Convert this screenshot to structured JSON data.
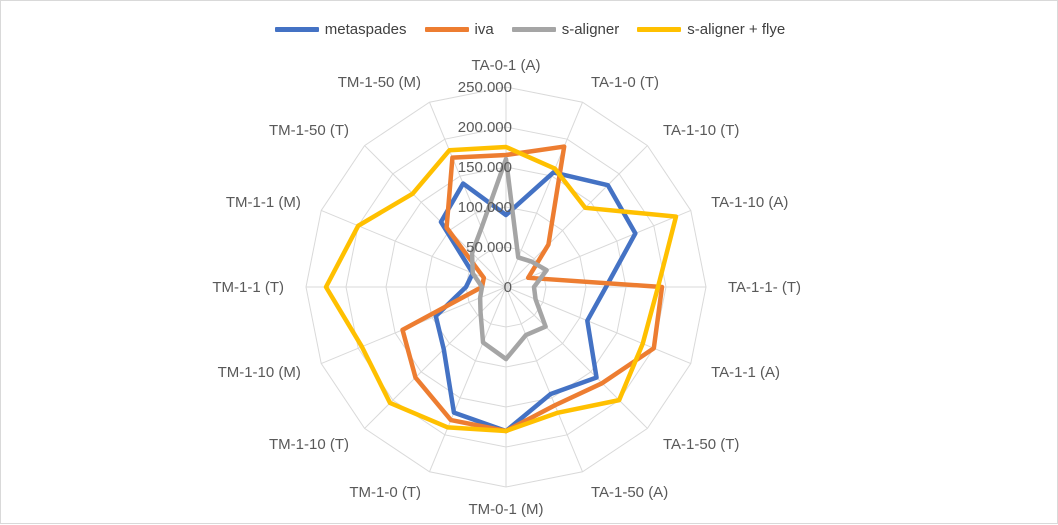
{
  "chart_data": {
    "type": "radar",
    "title": "",
    "categories": [
      "TA-0-1 (A)",
      "TA-1-0 (T)",
      "TA-1-10 (T)",
      "TA-1-10 (A)",
      "TA-1-1- (T)",
      "TA-1-1 (A)",
      "TA-1-50 (T)",
      "TA-1-50 (A)",
      "TM-0-1 (M)",
      "TM-1-0 (T)",
      "TM-1-10 (T)",
      "TM-1-10 (M)",
      "TM-1-1 (T)",
      "TM-1-1 (M)",
      "TM-1-50 (T)",
      "TM-1-50 (M)"
    ],
    "radial_ticks": [
      "0",
      "50.000",
      "100.000",
      "150.000",
      "200.000",
      "250.000"
    ],
    "rlim": [
      0,
      250000
    ],
    "grid": true,
    "legend_position": "top",
    "series": [
      {
        "name": "metaspades",
        "color": "#4472C4",
        "values": [
          90000,
          155000,
          180000,
          175000,
          125000,
          110000,
          160000,
          145000,
          180000,
          170000,
          110000,
          95000,
          50000,
          45000,
          115000,
          140000
        ]
      },
      {
        "name": "iva",
        "color": "#ED7D31",
        "values": [
          165000,
          190000,
          75000,
          30000,
          195000,
          200000,
          170000,
          160000,
          180000,
          180000,
          160000,
          140000,
          30000,
          30000,
          105000,
          175000
        ]
      },
      {
        "name": "s-aligner",
        "color": "#A5A5A5",
        "values": [
          160000,
          40000,
          45000,
          55000,
          35000,
          40000,
          70000,
          65000,
          90000,
          75000,
          45000,
          35000,
          30000,
          45000,
          60000,
          80000
        ]
      },
      {
        "name": "s-aligner + flye",
        "color": "#FFC000",
        "values": [
          175000,
          160000,
          140000,
          230000,
          190000,
          185000,
          200000,
          170000,
          180000,
          190000,
          205000,
          195000,
          225000,
          200000,
          165000,
          185000
        ]
      }
    ]
  }
}
